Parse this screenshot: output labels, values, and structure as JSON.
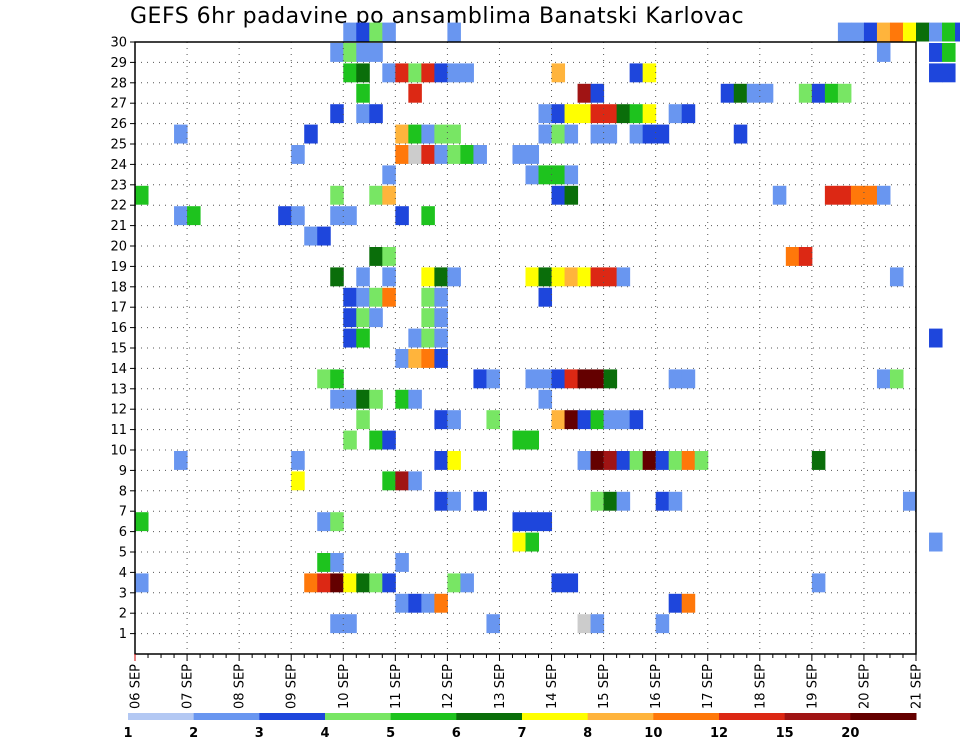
{
  "chart_data": {
    "type": "heatmap",
    "title": "GEFS 6hr padavine po ansamblima Banatski Karlovac",
    "x_tick_labels": [
      "06 SEP",
      "07 SEP",
      "08 SEP",
      "09 SEP",
      "10 SEP",
      "11 SEP",
      "12 SEP",
      "13 SEP",
      "14 SEP",
      "15 SEP",
      "16 SEP",
      "17 SEP",
      "18 SEP",
      "19 SEP",
      "20 SEP",
      "21 SEP"
    ],
    "y_tick_labels": [
      "1",
      "2",
      "3",
      "4",
      "5",
      "6",
      "7",
      "8",
      "9",
      "10",
      "11",
      "12",
      "13",
      "14",
      "15",
      "16",
      "17",
      "18",
      "19",
      "20",
      "21",
      "22",
      "23",
      "24",
      "25",
      "26",
      "27",
      "28",
      "29",
      "30"
    ],
    "x_range_days": [
      0,
      15
    ],
    "y_range": [
      0,
      30
    ],
    "grid": true,
    "time_step_hours": 6,
    "legend": {
      "tick_labels": [
        "1",
        "2",
        "3",
        "4",
        "5",
        "6",
        "7",
        "8",
        "10",
        "12",
        "15",
        "20"
      ],
      "colors": [
        "#b3c8f3",
        "#6996f0",
        "#1e46dc",
        "#78e664",
        "#1ec31e",
        "#0a6e0a",
        "#ffff00",
        "#ffb43c",
        "#ff780a",
        "#dc2814",
        "#a01414",
        "#640000"
      ]
    },
    "cells": [
      [
        30,
        16,
        1
      ],
      [
        30,
        17,
        2
      ],
      [
        30,
        18,
        3
      ],
      [
        30,
        19,
        1
      ],
      [
        30,
        24,
        1
      ],
      [
        30,
        54,
        1
      ],
      [
        30,
        55,
        1
      ],
      [
        30,
        56,
        2
      ],
      [
        30,
        57,
        7
      ],
      [
        30,
        58,
        8
      ],
      [
        30,
        59,
        6
      ],
      [
        30,
        60,
        5
      ],
      [
        30,
        61,
        1
      ],
      [
        30,
        62,
        4
      ],
      [
        30,
        63,
        2
      ],
      [
        29,
        15,
        1
      ],
      [
        29,
        16,
        3
      ],
      [
        29,
        17,
        1
      ],
      [
        29,
        18,
        1
      ],
      [
        29,
        57,
        1
      ],
      [
        29,
        61,
        2
      ],
      [
        29,
        62,
        4
      ],
      [
        28,
        16,
        4
      ],
      [
        28,
        17,
        5
      ],
      [
        28,
        19,
        1
      ],
      [
        28,
        20,
        9
      ],
      [
        28,
        21,
        3
      ],
      [
        28,
        22,
        9
      ],
      [
        28,
        23,
        2
      ],
      [
        28,
        24,
        1
      ],
      [
        28,
        25,
        1
      ],
      [
        28,
        32,
        7
      ],
      [
        28,
        38,
        2
      ],
      [
        28,
        39,
        6
      ],
      [
        28,
        61,
        2
      ],
      [
        28,
        62,
        2
      ],
      [
        27,
        17,
        4
      ],
      [
        27,
        21,
        9
      ],
      [
        27,
        34,
        10
      ],
      [
        27,
        35,
        2
      ],
      [
        27,
        45,
        2
      ],
      [
        27,
        46,
        5
      ],
      [
        27,
        47,
        1
      ],
      [
        27,
        48,
        1
      ],
      [
        27,
        51,
        3
      ],
      [
        27,
        52,
        2
      ],
      [
        27,
        53,
        4
      ],
      [
        27,
        54,
        3
      ],
      [
        26,
        15,
        2
      ],
      [
        26,
        17,
        1
      ],
      [
        26,
        18,
        2
      ],
      [
        26,
        31,
        1
      ],
      [
        26,
        32,
        2
      ],
      [
        26,
        33,
        6
      ],
      [
        26,
        34,
        6
      ],
      [
        26,
        35,
        9
      ],
      [
        26,
        36,
        9
      ],
      [
        26,
        37,
        5
      ],
      [
        26,
        38,
        4
      ],
      [
        26,
        39,
        6
      ],
      [
        26,
        41,
        1
      ],
      [
        26,
        42,
        2
      ],
      [
        25,
        3,
        1
      ],
      [
        25,
        13,
        2
      ],
      [
        25,
        20,
        7
      ],
      [
        25,
        21,
        4
      ],
      [
        25,
        22,
        1
      ],
      [
        25,
        23,
        3
      ],
      [
        25,
        24,
        3
      ],
      [
        25,
        31,
        1
      ],
      [
        25,
        32,
        3
      ],
      [
        25,
        33,
        1
      ],
      [
        25,
        35,
        1
      ],
      [
        25,
        36,
        1
      ],
      [
        25,
        38,
        1
      ],
      [
        25,
        39,
        2
      ],
      [
        25,
        40,
        2
      ],
      [
        25,
        46,
        2
      ],
      [
        24,
        12,
        1
      ],
      [
        24,
        20,
        8
      ],
      [
        24,
        21,
        12
      ],
      [
        24,
        22,
        9
      ],
      [
        24,
        23,
        1
      ],
      [
        24,
        24,
        3
      ],
      [
        24,
        25,
        4
      ],
      [
        24,
        26,
        1
      ],
      [
        24,
        29,
        1
      ],
      [
        24,
        30,
        1
      ],
      [
        23,
        19,
        1
      ],
      [
        23,
        30,
        1
      ],
      [
        23,
        31,
        4
      ],
      [
        23,
        32,
        4
      ],
      [
        23,
        33,
        1
      ],
      [
        22,
        0,
        4
      ],
      [
        22,
        15,
        3
      ],
      [
        22,
        18,
        3
      ],
      [
        22,
        19,
        7
      ],
      [
        22,
        32,
        2
      ],
      [
        22,
        33,
        5
      ],
      [
        22,
        49,
        1
      ],
      [
        22,
        53,
        9
      ],
      [
        22,
        54,
        9
      ],
      [
        22,
        55,
        8
      ],
      [
        22,
        56,
        8
      ],
      [
        22,
        57,
        1
      ],
      [
        21,
        3,
        1
      ],
      [
        21,
        4,
        4
      ],
      [
        21,
        11,
        2
      ],
      [
        21,
        12,
        1
      ],
      [
        21,
        15,
        1
      ],
      [
        21,
        16,
        1
      ],
      [
        21,
        20,
        2
      ],
      [
        21,
        22,
        4
      ],
      [
        20,
        13,
        1
      ],
      [
        20,
        14,
        2
      ],
      [
        19,
        18,
        5
      ],
      [
        19,
        19,
        3
      ],
      [
        19,
        50,
        8
      ],
      [
        19,
        51,
        9
      ],
      [
        18,
        15,
        5
      ],
      [
        18,
        17,
        1
      ],
      [
        18,
        19,
        1
      ],
      [
        18,
        22,
        6
      ],
      [
        18,
        23,
        5
      ],
      [
        18,
        24,
        1
      ],
      [
        18,
        30,
        6
      ],
      [
        18,
        31,
        5
      ],
      [
        18,
        32,
        6
      ],
      [
        18,
        33,
        7
      ],
      [
        18,
        34,
        6
      ],
      [
        18,
        35,
        9
      ],
      [
        18,
        36,
        9
      ],
      [
        18,
        37,
        1
      ],
      [
        18,
        58,
        1
      ],
      [
        17,
        16,
        2
      ],
      [
        17,
        17,
        1
      ],
      [
        17,
        18,
        3
      ],
      [
        17,
        19,
        8
      ],
      [
        17,
        22,
        3
      ],
      [
        17,
        23,
        1
      ],
      [
        17,
        31,
        2
      ],
      [
        16,
        16,
        2
      ],
      [
        16,
        17,
        3
      ],
      [
        16,
        18,
        1
      ],
      [
        16,
        22,
        3
      ],
      [
        16,
        23,
        1
      ],
      [
        15,
        16,
        2
      ],
      [
        15,
        17,
        4
      ],
      [
        15,
        21,
        1
      ],
      [
        15,
        22,
        3
      ],
      [
        15,
        23,
        1
      ],
      [
        15,
        61,
        2
      ],
      [
        14,
        20,
        1
      ],
      [
        14,
        21,
        7
      ],
      [
        14,
        22,
        8
      ],
      [
        14,
        23,
        2
      ],
      [
        13,
        14,
        3
      ],
      [
        13,
        15,
        4
      ],
      [
        13,
        26,
        2
      ],
      [
        13,
        27,
        1
      ],
      [
        13,
        30,
        1
      ],
      [
        13,
        31,
        1
      ],
      [
        13,
        32,
        2
      ],
      [
        13,
        33,
        9
      ],
      [
        13,
        34,
        11
      ],
      [
        13,
        35,
        11
      ],
      [
        13,
        36,
        5
      ],
      [
        13,
        41,
        1
      ],
      [
        13,
        42,
        1
      ],
      [
        13,
        57,
        1
      ],
      [
        13,
        58,
        3
      ],
      [
        12,
        15,
        1
      ],
      [
        12,
        16,
        1
      ],
      [
        12,
        17,
        5
      ],
      [
        12,
        18,
        3
      ],
      [
        12,
        20,
        4
      ],
      [
        12,
        21,
        1
      ],
      [
        12,
        31,
        1
      ],
      [
        11,
        17,
        3
      ],
      [
        11,
        23,
        2
      ],
      [
        11,
        24,
        1
      ],
      [
        11,
        27,
        3
      ],
      [
        11,
        32,
        7
      ],
      [
        11,
        33,
        11
      ],
      [
        11,
        34,
        2
      ],
      [
        11,
        35,
        4
      ],
      [
        11,
        36,
        1
      ],
      [
        11,
        37,
        1
      ],
      [
        11,
        38,
        2
      ],
      [
        10,
        16,
        3
      ],
      [
        10,
        18,
        4
      ],
      [
        10,
        19,
        2
      ],
      [
        10,
        29,
        4
      ],
      [
        10,
        30,
        4
      ],
      [
        9,
        3,
        1
      ],
      [
        9,
        12,
        1
      ],
      [
        9,
        23,
        2
      ],
      [
        9,
        24,
        6
      ],
      [
        9,
        34,
        1
      ],
      [
        9,
        35,
        11
      ],
      [
        9,
        36,
        10
      ],
      [
        9,
        37,
        2
      ],
      [
        9,
        38,
        3
      ],
      [
        9,
        39,
        11
      ],
      [
        9,
        40,
        2
      ],
      [
        9,
        41,
        3
      ],
      [
        9,
        42,
        8
      ],
      [
        9,
        43,
        3
      ],
      [
        9,
        52,
        5
      ],
      [
        8,
        12,
        6
      ],
      [
        8,
        19,
        4
      ],
      [
        8,
        20,
        10
      ],
      [
        8,
        21,
        1
      ],
      [
        7,
        23,
        2
      ],
      [
        7,
        24,
        1
      ],
      [
        7,
        26,
        2
      ],
      [
        7,
        35,
        3
      ],
      [
        7,
        36,
        5
      ],
      [
        7,
        37,
        1
      ],
      [
        7,
        40,
        2
      ],
      [
        7,
        41,
        1
      ],
      [
        7,
        59,
        1
      ],
      [
        6,
        0,
        4
      ],
      [
        6,
        14,
        1
      ],
      [
        6,
        15,
        3
      ],
      [
        6,
        29,
        2
      ],
      [
        6,
        30,
        2
      ],
      [
        6,
        31,
        2
      ],
      [
        5,
        29,
        6
      ],
      [
        5,
        30,
        4
      ],
      [
        5,
        61,
        1
      ],
      [
        4,
        14,
        4
      ],
      [
        4,
        15,
        1
      ],
      [
        4,
        20,
        1
      ],
      [
        3,
        0,
        1
      ],
      [
        3,
        13,
        8
      ],
      [
        3,
        14,
        9
      ],
      [
        3,
        15,
        11
      ],
      [
        3,
        16,
        6
      ],
      [
        3,
        17,
        5
      ],
      [
        3,
        18,
        3
      ],
      [
        3,
        19,
        2
      ],
      [
        3,
        24,
        3
      ],
      [
        3,
        25,
        1
      ],
      [
        3,
        32,
        2
      ],
      [
        3,
        33,
        2
      ],
      [
        3,
        52,
        1
      ],
      [
        2,
        20,
        1
      ],
      [
        2,
        21,
        2
      ],
      [
        2,
        22,
        1
      ],
      [
        2,
        23,
        8
      ],
      [
        2,
        41,
        2
      ],
      [
        2,
        42,
        8
      ],
      [
        1,
        15,
        1
      ],
      [
        1,
        16,
        1
      ],
      [
        1,
        27,
        1
      ],
      [
        1,
        34,
        12
      ],
      [
        1,
        35,
        1
      ],
      [
        1,
        40,
        1
      ]
    ]
  }
}
